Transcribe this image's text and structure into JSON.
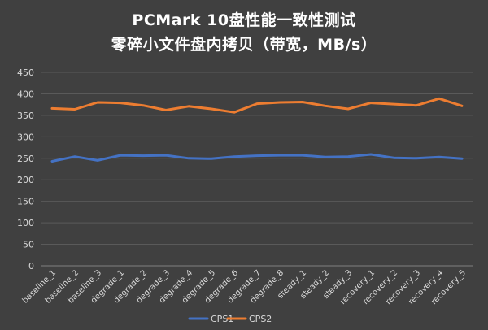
{
  "title_line1": "PCMark 10盘性能一致性测试",
  "title_line2": "零碎小文件盘内拷贝（带宽，MB/s）",
  "chart_data": {
    "type": "line",
    "title": "PCMark 10盘性能一致性测试 零碎小文件盘内拷贝（带宽，MB/s）",
    "xlabel": "",
    "ylabel": "",
    "ylim": [
      0,
      450
    ],
    "yticks": [
      0,
      50,
      100,
      150,
      200,
      250,
      300,
      350,
      400,
      450
    ],
    "grid": true,
    "legend": "bottom",
    "categories": [
      "baseline_1",
      "baseline_2",
      "baseline_3",
      "degrade_1",
      "degrade_2",
      "degrade_3",
      "degrade_4",
      "degrade_5",
      "degrade_6",
      "degrade_7",
      "degrade_8",
      "steady_1",
      "steady_2",
      "steady_3",
      "recovery_1",
      "recovery_2",
      "recovery_3",
      "recovery_4",
      "recovery_5"
    ],
    "series": [
      {
        "name": "CPS1",
        "color": "#4472C4",
        "values": [
          243,
          254,
          245,
          257,
          256,
          257,
          250,
          249,
          254,
          256,
          257,
          257,
          253,
          254,
          259,
          251,
          250,
          253,
          249
        ]
      },
      {
        "name": "CPS2",
        "color": "#ED7D31",
        "values": [
          366,
          364,
          380,
          379,
          373,
          362,
          371,
          365,
          357,
          377,
          380,
          381,
          372,
          365,
          379,
          376,
          373,
          389,
          372
        ]
      }
    ]
  }
}
